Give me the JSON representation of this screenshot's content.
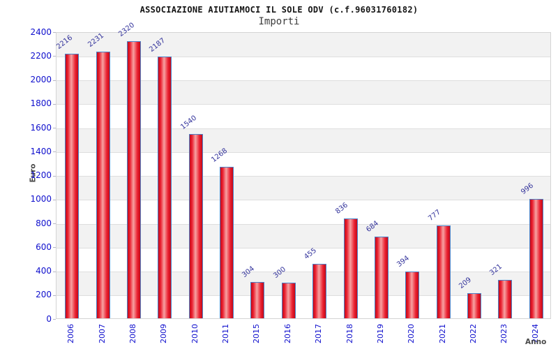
{
  "chart_data": {
    "type": "bar",
    "title": "ASSOCIAZIONE AIUTIAMOCI IL SOLE ODV (c.f.96031760182)",
    "subtitle": "Importi",
    "xlabel": "Anno",
    "ylabel": "Euro",
    "categories": [
      "2006",
      "2007",
      "2008",
      "2009",
      "2010",
      "2011",
      "2015",
      "2016",
      "2017",
      "2018",
      "2019",
      "2020",
      "2021",
      "2022",
      "2023",
      "2024"
    ],
    "values": [
      2216,
      2231,
      2320,
      2187,
      1540,
      1268,
      304,
      300,
      455,
      836,
      684,
      394,
      777,
      209,
      321,
      996
    ],
    "ylim": [
      0,
      2400
    ],
    "ytick_step": 200,
    "grid": "horizontal-bands-alternating",
    "legend": "none",
    "bar_value_labels_rotated": true,
    "x_labels_rotated_90": true
  },
  "colors": {
    "bar_fill": "#ea2030",
    "bar_highlight": "#f7a2a2",
    "bar_border": "#4a82c8",
    "axis_tick_label": "#0f0fcd",
    "value_label": "#32329b",
    "band_gray": "#f2f2f2",
    "plot_border": "#d4d4d4",
    "title_color": "#141414",
    "axis_title_color": "#4a4a4a"
  }
}
